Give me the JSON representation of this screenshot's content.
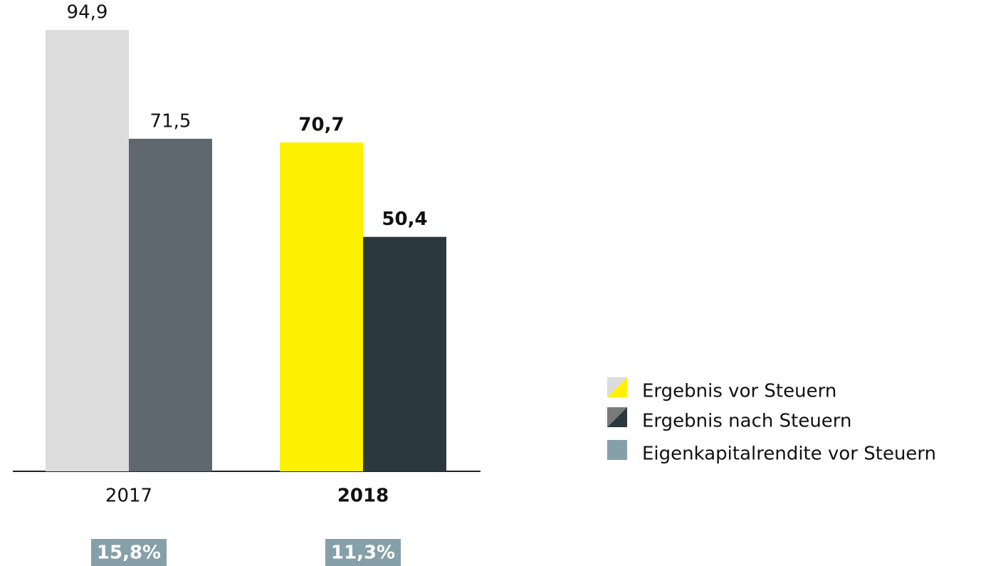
{
  "chart_data": {
    "type": "bar",
    "categories": [
      "2017",
      "2018"
    ],
    "highlight_index": 1,
    "series": [
      {
        "name": "Ergebnis vor Steuern",
        "color": [
          "#dcdcdc",
          "#fff200"
        ],
        "values": [
          94.9,
          70.7
        ],
        "value_labels": [
          "94,9",
          "70,7"
        ]
      },
      {
        "name": "Ergebnis nach Steuern",
        "color": [
          "#5f686e",
          "#2b383e"
        ],
        "values": [
          71.5,
          50.4
        ],
        "value_labels": [
          "71,5",
          "50,4"
        ]
      },
      {
        "name": "Eigenkapitalrendite vor Steuern",
        "type": "label-box",
        "color": "#85a0a8",
        "values": [
          15.8,
          11.3
        ],
        "value_labels": [
          "15,8%",
          "11,3%"
        ]
      }
    ]
  }
}
